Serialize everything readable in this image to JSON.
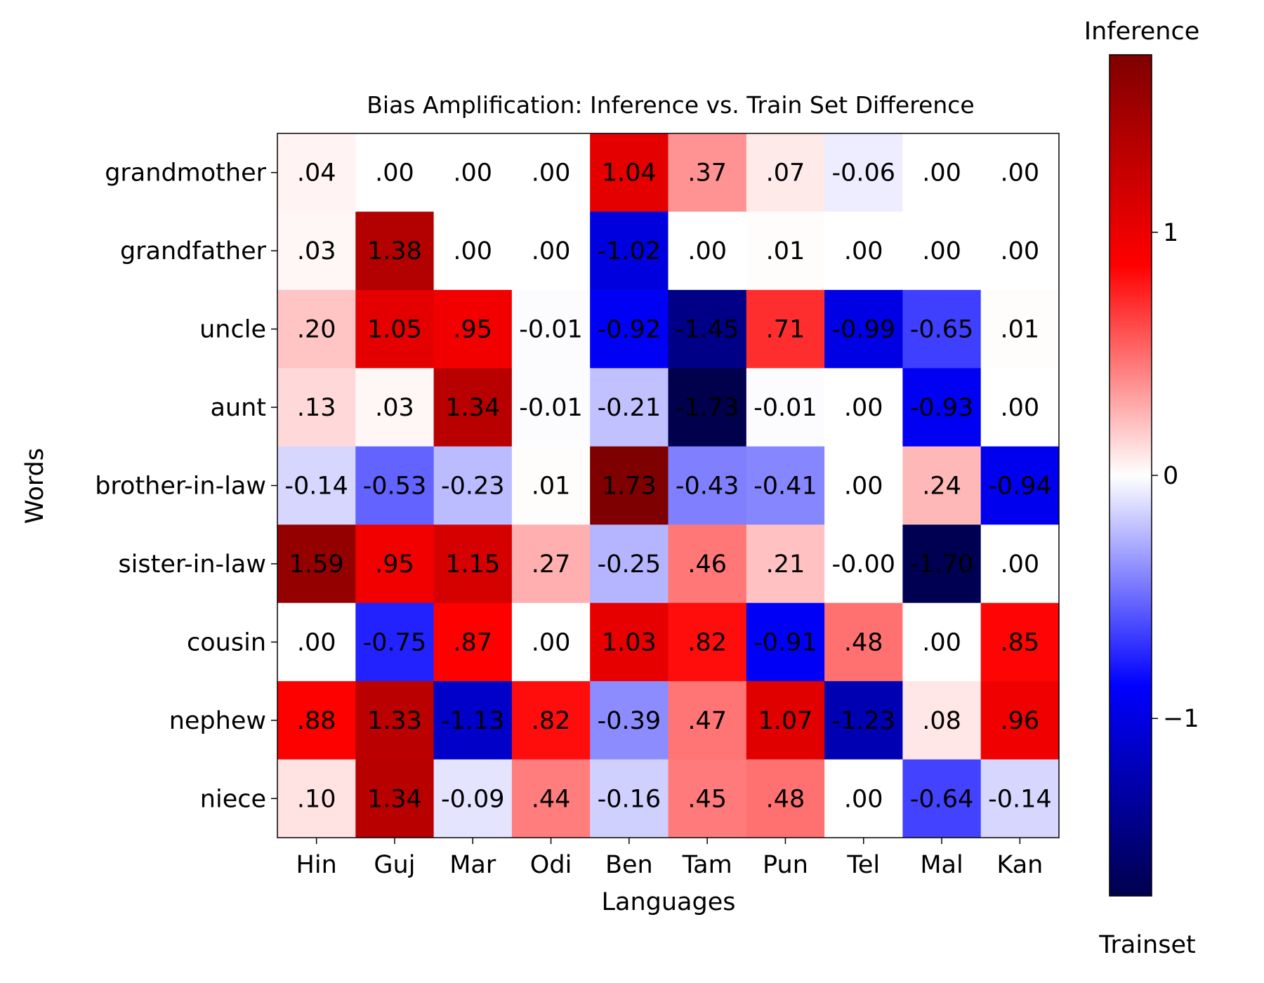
{
  "chart_data": {
    "type": "heatmap",
    "title": "Bias Amplification: Inference vs. Train Set Difference",
    "xlabel": "Languages",
    "ylabel": "Words",
    "x_categories": [
      "Hin",
      "Guj",
      "Mar",
      "Odi",
      "Ben",
      "Tam",
      "Pun",
      "Tel",
      "Mal",
      "Kan"
    ],
    "y_categories": [
      "grandmother",
      "grandfather",
      "uncle",
      "aunt",
      "brother-in-law",
      "sister-in-law",
      "cousin",
      "nephew",
      "niece"
    ],
    "values": [
      [
        0.04,
        0.0,
        0.0,
        0.0,
        1.04,
        0.37,
        0.07,
        -0.06,
        0.0,
        0.0
      ],
      [
        0.03,
        1.38,
        0.0,
        0.0,
        -1.02,
        0.0,
        0.01,
        0.0,
        0.0,
        0.0
      ],
      [
        0.2,
        1.05,
        0.95,
        -0.01,
        -0.92,
        -1.45,
        0.71,
        -0.99,
        -0.65,
        0.01
      ],
      [
        0.13,
        0.03,
        1.34,
        -0.01,
        -0.21,
        -1.73,
        -0.01,
        0.0,
        -0.93,
        0.0
      ],
      [
        -0.14,
        -0.53,
        -0.23,
        0.01,
        1.73,
        -0.43,
        -0.41,
        0.0,
        0.24,
        -0.94
      ],
      [
        1.59,
        0.95,
        1.15,
        0.27,
        -0.25,
        0.46,
        0.21,
        -0.0,
        -1.7,
        0.0
      ],
      [
        0.0,
        -0.75,
        0.87,
        0.0,
        1.03,
        0.82,
        -0.91,
        0.48,
        0.0,
        0.85
      ],
      [
        0.88,
        1.33,
        -1.13,
        0.82,
        -0.39,
        0.47,
        1.07,
        -1.23,
        0.08,
        0.96
      ],
      [
        0.1,
        1.34,
        -0.09,
        0.44,
        -0.16,
        0.45,
        0.48,
        0.0,
        -0.64,
        -0.14
      ]
    ],
    "cell_labels": [
      [
        ".04",
        ".00",
        ".00",
        ".00",
        "1.04",
        ".37",
        ".07",
        "-0.06",
        ".00",
        ".00"
      ],
      [
        ".03",
        "1.38",
        ".00",
        ".00",
        "-1.02",
        ".00",
        ".01",
        ".00",
        ".00",
        ".00"
      ],
      [
        ".20",
        "1.05",
        ".95",
        "-0.01",
        "-0.92",
        "-1.45",
        ".71",
        "-0.99",
        "-0.65",
        ".01"
      ],
      [
        ".13",
        ".03",
        "1.34",
        "-0.01",
        "-0.21",
        "-1.73",
        "-0.01",
        ".00",
        "-0.93",
        ".00"
      ],
      [
        "-0.14",
        "-0.53",
        "-0.23",
        ".01",
        "1.73",
        "-0.43",
        "-0.41",
        ".00",
        ".24",
        "-0.94"
      ],
      [
        "1.59",
        ".95",
        "1.15",
        ".27",
        "-0.25",
        ".46",
        ".21",
        "-0.00",
        "-1.70",
        ".00"
      ],
      [
        ".00",
        "-0.75",
        ".87",
        ".00",
        "1.03",
        ".82",
        "-0.91",
        ".48",
        ".00",
        ".85"
      ],
      [
        ".88",
        "1.33",
        "-1.13",
        ".82",
        "-0.39",
        ".47",
        "1.07",
        "-1.23",
        ".08",
        ".96"
      ],
      [
        ".10",
        "1.34",
        "-0.09",
        ".44",
        "-0.16",
        ".45",
        ".48",
        ".00",
        "-0.64",
        "-0.14"
      ]
    ],
    "colormap": "seismic",
    "vmin": -1.73,
    "vmax": 1.73,
    "grid": false,
    "colorbar": {
      "top_label": "Inference",
      "bottom_label": "Trainset",
      "ticks": [
        1,
        0,
        -1
      ],
      "tick_labels": [
        "1",
        "0",
        "−1"
      ]
    }
  }
}
